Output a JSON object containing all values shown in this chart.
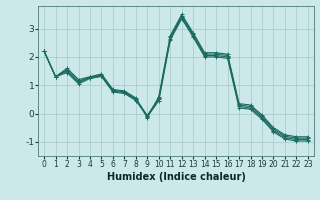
{
  "xlabel": "Humidex (Indice chaleur)",
  "background_color": "#cce8e8",
  "grid_color": "#aacece",
  "line_color": "#1a6b60",
  "xlim": [
    -0.5,
    23.5
  ],
  "ylim": [
    -1.5,
    3.8
  ],
  "yticks": [
    -1,
    0,
    1,
    2,
    3
  ],
  "xticks": [
    0,
    1,
    2,
    3,
    4,
    5,
    6,
    7,
    8,
    9,
    10,
    11,
    12,
    13,
    14,
    15,
    16,
    17,
    18,
    19,
    20,
    21,
    22,
    23
  ],
  "series": [
    [
      2.2,
      1.3,
      1.6,
      1.2,
      1.3,
      1.4,
      0.85,
      0.8,
      0.55,
      -0.15,
      0.6,
      2.75,
      3.5,
      2.85,
      2.15,
      2.15,
      2.1,
      0.35,
      0.3,
      -0.05,
      -0.5,
      -0.75,
      -0.82,
      -0.82
    ],
    [
      2.2,
      1.3,
      1.55,
      1.15,
      1.28,
      1.37,
      0.82,
      0.77,
      0.52,
      -0.07,
      0.55,
      2.7,
      3.45,
      2.8,
      2.1,
      2.1,
      2.05,
      0.3,
      0.25,
      -0.1,
      -0.55,
      -0.8,
      -0.87,
      -0.87
    ],
    [
      2.2,
      1.3,
      1.5,
      1.1,
      1.26,
      1.34,
      0.79,
      0.74,
      0.49,
      -0.09,
      0.5,
      2.65,
      3.4,
      2.75,
      2.05,
      2.05,
      2.0,
      0.25,
      0.2,
      -0.15,
      -0.6,
      -0.85,
      -0.92,
      -0.92
    ],
    [
      2.2,
      1.3,
      1.45,
      1.05,
      1.24,
      1.31,
      0.76,
      0.71,
      0.46,
      -0.11,
      0.45,
      2.6,
      3.35,
      2.7,
      2.0,
      2.0,
      1.95,
      0.2,
      0.15,
      -0.2,
      -0.65,
      -0.9,
      -0.97,
      -0.97
    ]
  ],
  "font_size": 7,
  "xlabel_fontsize": 7,
  "tick_labelsize": 6.5,
  "linewidth": 0.8,
  "markersize": 2.5
}
